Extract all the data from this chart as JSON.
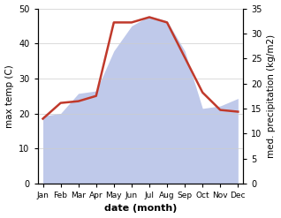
{
  "months": [
    "Jan",
    "Feb",
    "Mar",
    "Apr",
    "May",
    "Jun",
    "Jul",
    "Aug",
    "Sep",
    "Oct",
    "Nov",
    "Dec"
  ],
  "temp": [
    18.5,
    23.0,
    23.5,
    25.0,
    46.0,
    46.0,
    47.5,
    46.0,
    36.0,
    26.0,
    21.0,
    20.5
  ],
  "precip": [
    13.5,
    14.0,
    18.0,
    18.5,
    26.5,
    31.5,
    33.5,
    32.5,
    26.5,
    15.0,
    15.5,
    17.0
  ],
  "temp_color": "#c0392b",
  "precip_fill_color": "#bfc9ea",
  "temp_lw": 1.8,
  "ylabel_left": "max temp (C)",
  "ylabel_right": "med. precipitation (kg/m2)",
  "xlabel": "date (month)",
  "ylim_left": [
    0,
    50
  ],
  "ylim_right": [
    0,
    35
  ],
  "yticks_left": [
    0,
    10,
    20,
    30,
    40,
    50
  ],
  "yticks_right": [
    0,
    5,
    10,
    15,
    20,
    25,
    30,
    35
  ],
  "background_color": "#ffffff",
  "grid_color": "#cccccc"
}
